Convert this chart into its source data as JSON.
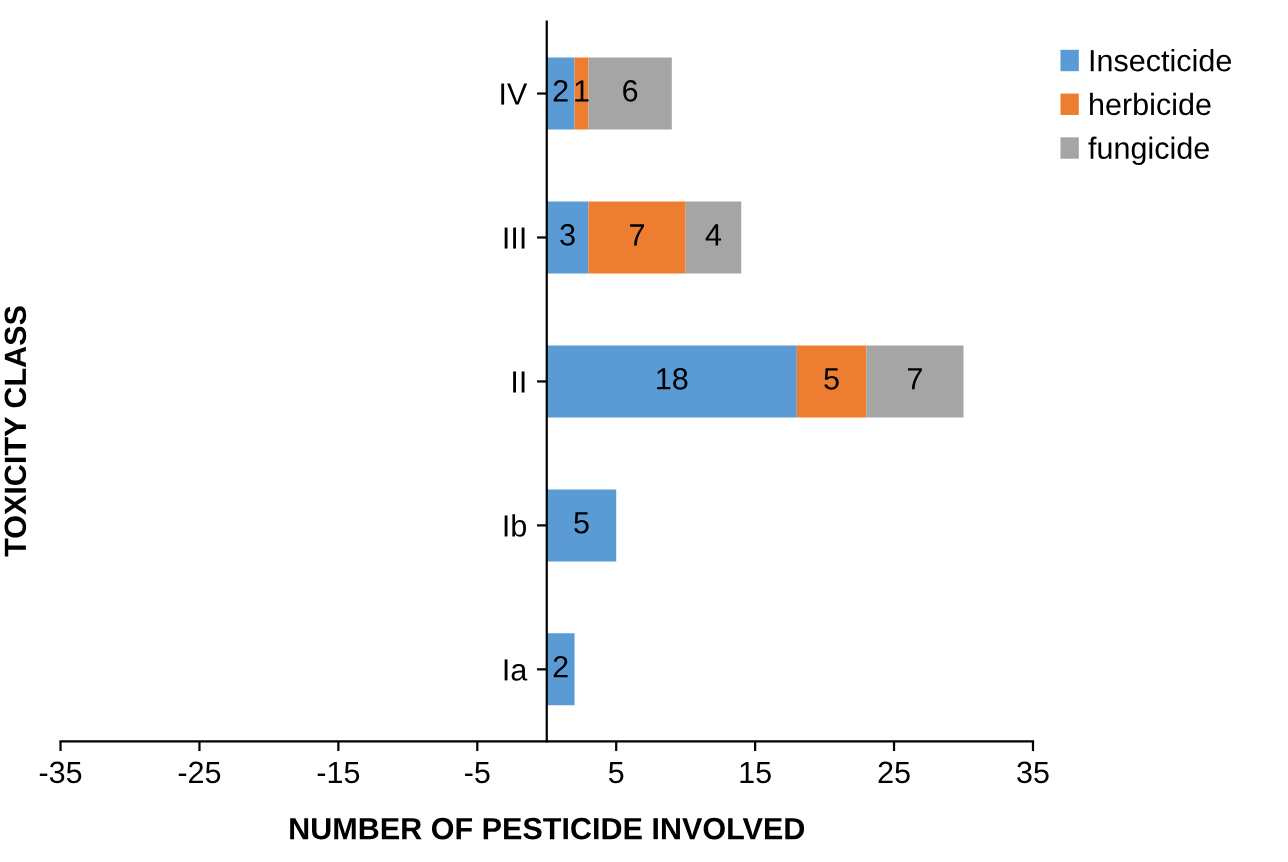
{
  "chart_data": {
    "type": "bar",
    "orientation": "horizontal",
    "stacked": true,
    "xlabel": "NUMBER OF PESTICIDE INVOLVED",
    "ylabel": "TOXICITY CLASS",
    "categories": [
      "IV",
      "III",
      "II",
      "Ib",
      "Ia"
    ],
    "series": [
      {
        "name": "Insecticide",
        "color": "#5b9bd5",
        "values": [
          2,
          3,
          18,
          5,
          2
        ]
      },
      {
        "name": "herbicide",
        "color": "#ed7d31",
        "values": [
          1,
          7,
          5,
          null,
          null
        ]
      },
      {
        "name": "fungicide",
        "color": "#a5a5a5",
        "values": [
          6,
          4,
          7,
          null,
          null
        ]
      }
    ],
    "xlim": [
      -35,
      35
    ],
    "xticks": [
      -35,
      -25,
      -15,
      -5,
      5,
      15,
      25,
      35
    ],
    "data_labels": true,
    "legend": "top right",
    "grid": false
  }
}
